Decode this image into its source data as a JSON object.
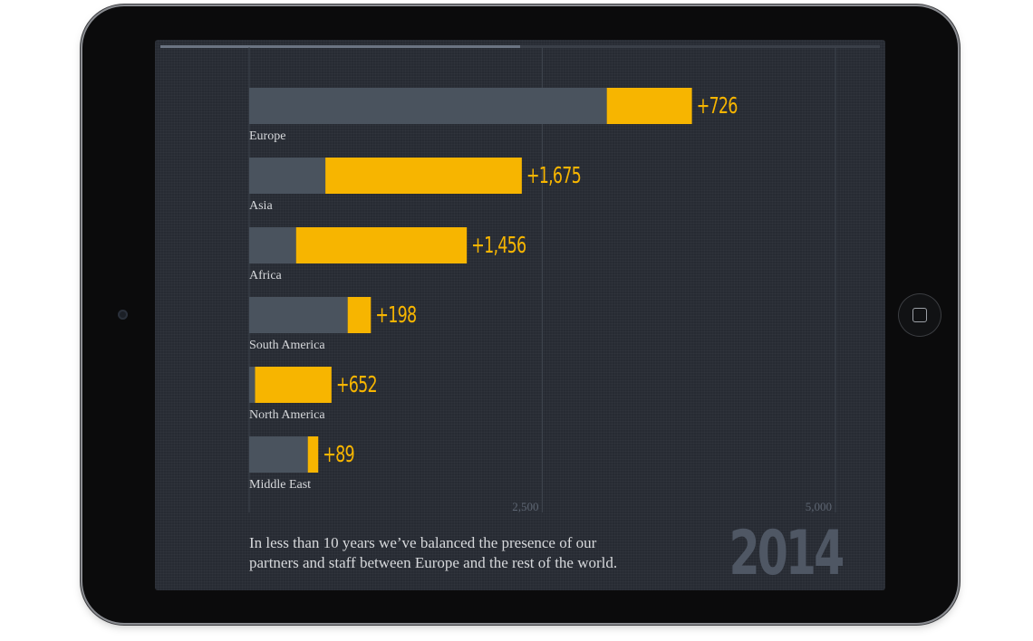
{
  "presentation": {
    "progress": 0.5,
    "caption_lines": [
      "In less than 10 years we’ve balanced the presence of our",
      "partners and staff between Europe and the rest of the world."
    ],
    "year": "2014"
  },
  "colors": {
    "screen_bg": "#272b33",
    "base_bar": "#4a535e",
    "increase_bar": "#f7b500",
    "increase_label": "#f7b500",
    "category_label": "#d7d9dc",
    "gridline": "#3d434c",
    "tick_label": "#5e6673",
    "year": "#4f5764"
  },
  "chart_data": {
    "type": "bar",
    "orientation": "horizontal",
    "stacked": true,
    "categories": [
      "Europe",
      "Asia",
      "Africa",
      "South America",
      "North America",
      "Middle East"
    ],
    "series": [
      {
        "values": [
          3050,
          650,
          400,
          840,
          50,
          500
        ]
      },
      {
        "values": [
          726,
          1675,
          1456,
          198,
          652,
          89
        ]
      }
    ],
    "data_labels": [
      "+726",
      "+1,675",
      "+1,456",
      "+198",
      "+652",
      "+89"
    ],
    "xlim": [
      0,
      5000
    ],
    "xticks": [
      2500,
      5000
    ],
    "xtick_labels": [
      "2,500",
      "5,000"
    ],
    "grid": true
  }
}
